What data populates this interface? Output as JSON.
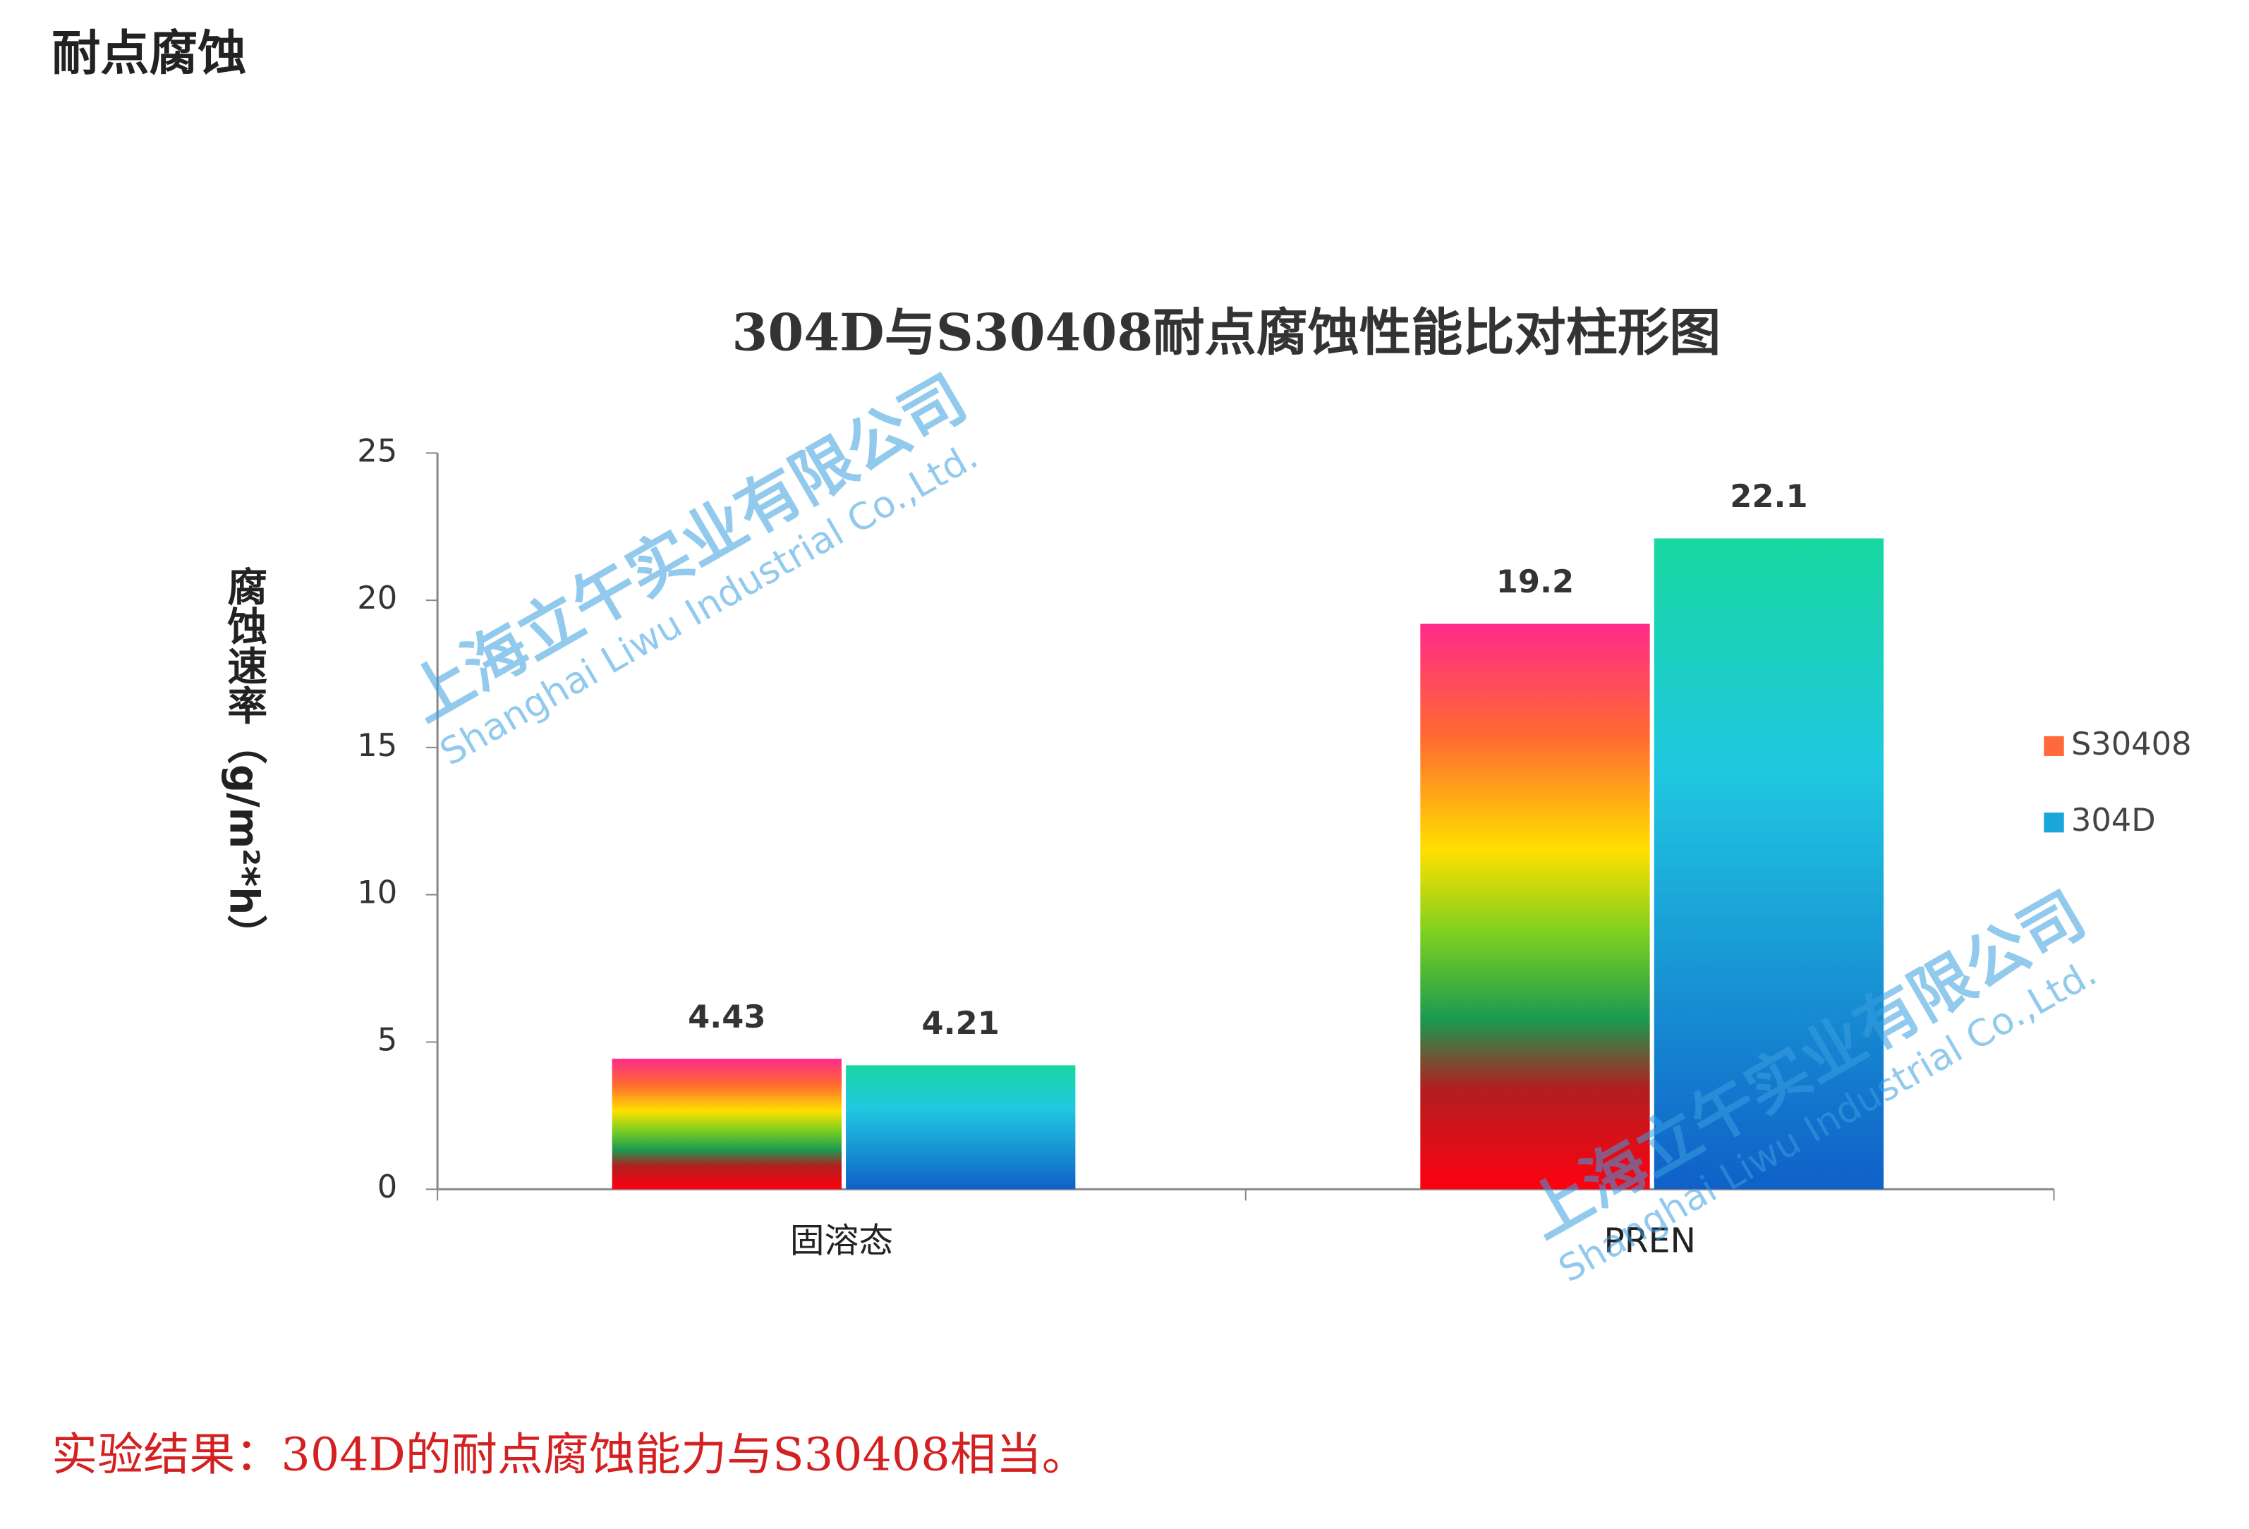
{
  "heading": "耐点腐蚀",
  "chart_data": {
    "type": "bar",
    "title": "304D与S30408耐点腐蚀性能比对柱形图",
    "y_label": "腐蚀速率（g/m²*h）",
    "categories": [
      "固溶态",
      "PREN"
    ],
    "series": [
      {
        "name": "S30408",
        "color": "#ff6a3d",
        "values": [
          4.43,
          19.2
        ]
      },
      {
        "name": "304D",
        "color": "#1aa6d8",
        "values": [
          4.21,
          22.1
        ]
      }
    ],
    "ylim": [
      0,
      25
    ],
    "yticks": [
      0,
      5,
      10,
      15,
      20,
      25
    ],
    "legend": "right"
  },
  "watermark": {
    "company": "上海立午实业有限公司",
    "english": "Shanghai Liwu Industrial Co.,Ltd."
  },
  "footer_note": "实验结果：304D的耐点腐蚀能力与S30408相当。"
}
